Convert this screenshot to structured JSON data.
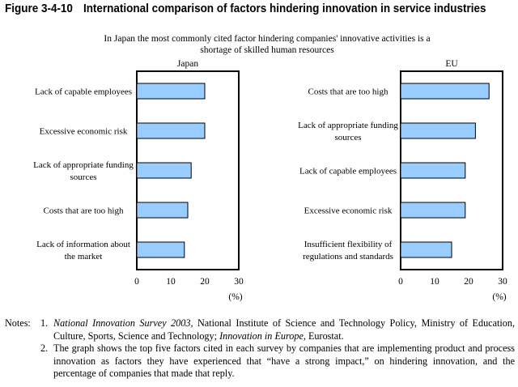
{
  "figure": {
    "number": "Figure 3-4-10",
    "title": "International comparison of factors hindering innovation in service industries",
    "subtitle_line1": "In Japan the most commonly cited factor hindering companies' innovative activities is a",
    "subtitle_line2": "shortage of skilled human resources"
  },
  "colors": {
    "bar_fill": "#99ccff",
    "bar_stroke": "#000000",
    "frame": "#000000"
  },
  "chart_data": [
    {
      "type": "bar",
      "orientation": "horizontal",
      "title": "Japan",
      "categories": [
        [
          "Lack of capable employees"
        ],
        [
          "Excessive economic risk"
        ],
        [
          "Lack of appropriate funding",
          "sources"
        ],
        [
          "Costs that are too high"
        ],
        [
          "Lack of information about",
          "the market"
        ]
      ],
      "values": [
        20,
        20,
        16,
        15,
        14
      ],
      "xlim": [
        0,
        30
      ],
      "xticks": [
        "0",
        "10",
        "20",
        "30"
      ],
      "unit_label": "(%)",
      "grid": false
    },
    {
      "type": "bar",
      "orientation": "horizontal",
      "title": "EU",
      "categories": [
        [
          "Costs that are too high"
        ],
        [
          "Lack of appropriate funding",
          "sources"
        ],
        [
          "Lack of capable employees"
        ],
        [
          "Excessive economic risk"
        ],
        [
          "Insufficient flexibility of",
          "regulations and standards"
        ]
      ],
      "values": [
        26,
        22,
        19,
        19,
        15
      ],
      "xlim": [
        0,
        30
      ],
      "xticks": [
        "0",
        "10",
        "20",
        "30"
      ],
      "unit_label": "(%)",
      "grid": false
    }
  ],
  "notes": {
    "lead": "Notes:",
    "items": [
      {
        "num": "1.",
        "part1": "National Innovation Survey 2003",
        "part2": ", National Institute of Science and Technology Policy, Ministry of Education, Culture, Sports, Science and Technology; ",
        "part3": "Innovation in Europe",
        "part4": ", Eurostat."
      },
      {
        "num": "2.",
        "text": "The graph shows the top five factors cited in each survey by companies that are implementing product and process innovation as factors they have experienced that “have a strong impact,” on hindering innovation, and the percentage of companies that made that reply."
      }
    ]
  }
}
